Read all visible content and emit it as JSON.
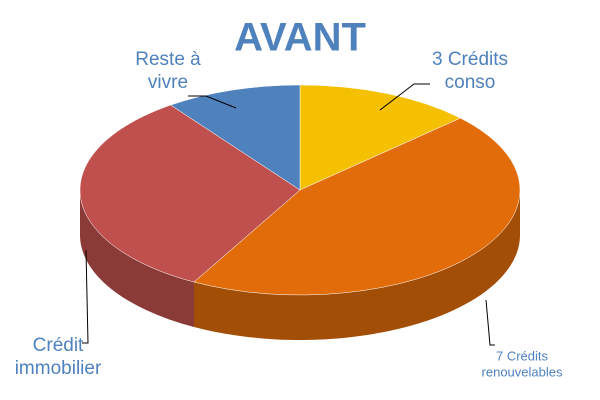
{
  "chart_data": {
    "type": "pie3d",
    "title": "AVANT",
    "categories": [
      "3 Crédits\nconso",
      "7 Crédits\nrenouvelables",
      "Crédit\nimmobilier",
      "Reste à\nvivre"
    ],
    "values": [
      13,
      45,
      32,
      10
    ],
    "colors": [
      "#f5c000",
      "#e36c0a",
      "#c0504d",
      "#4f81bd"
    ]
  }
}
